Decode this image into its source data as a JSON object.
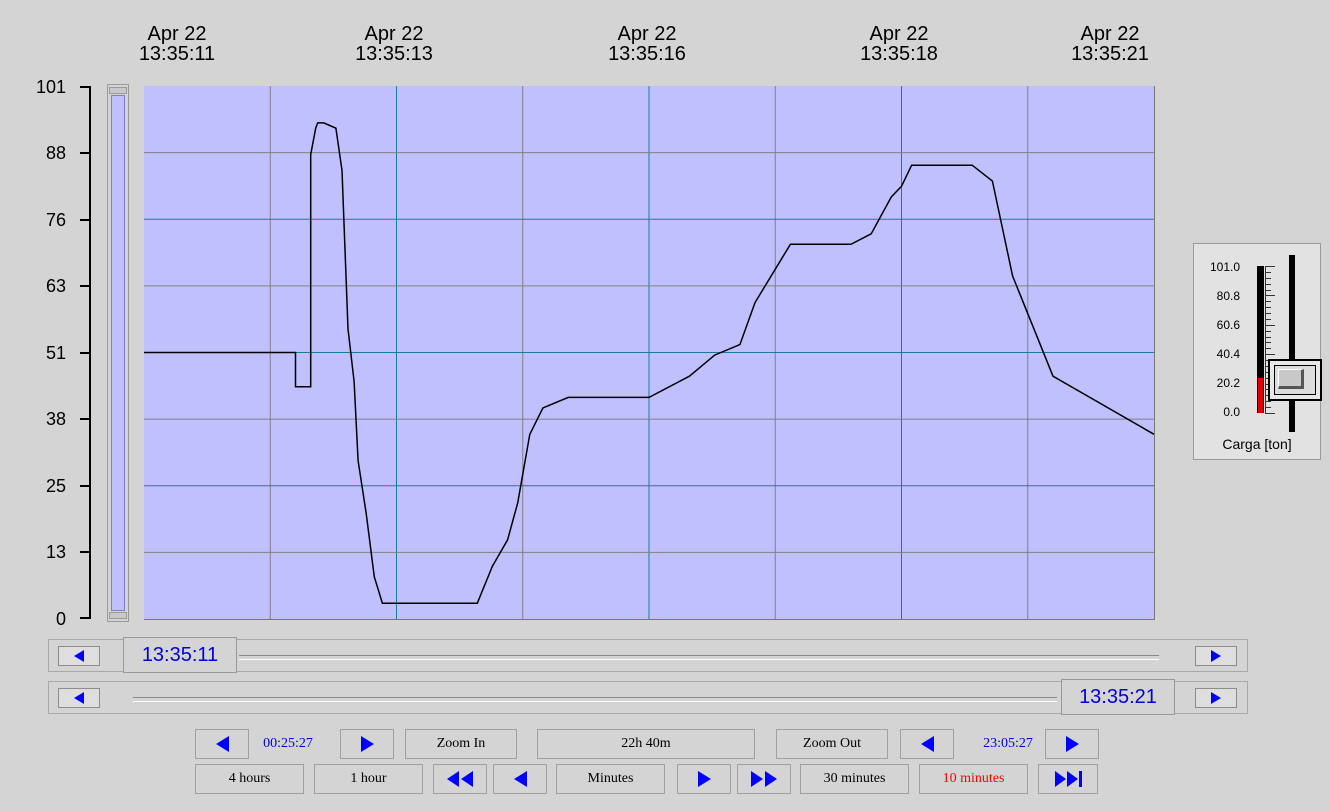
{
  "time_axis": {
    "labels": [
      {
        "date": "Apr 22",
        "time": "13:35:11"
      },
      {
        "date": "Apr 22",
        "time": "13:35:13"
      },
      {
        "date": "Apr 22",
        "time": "13:35:16"
      },
      {
        "date": "Apr 22",
        "time": "13:35:18"
      },
      {
        "date": "Apr 22",
        "time": "13:35:21"
      }
    ]
  },
  "y_axis": {
    "labels": [
      "101",
      "88",
      "76",
      "63",
      "51",
      "38",
      "25",
      "13",
      "0"
    ]
  },
  "chart_data": {
    "type": "line",
    "title": "",
    "xlabel": "",
    "ylabel": "",
    "ylim": [
      0,
      101
    ],
    "xlim": [
      "13:35:11",
      "13:35:21"
    ],
    "grid": true,
    "colors": {
      "background": "#c0c0ff",
      "line": "#000000",
      "major_grid": "#1a7a9a",
      "minor_grid": "#808080"
    },
    "series": [
      {
        "x": [
          "13:35:11.0",
          "13:35:12.5",
          "13:35:12.5",
          "13:35:12.65",
          "13:35:12.65",
          "13:35:12.7",
          "13:35:12.72",
          "13:35:12.78",
          "13:35:12.9",
          "13:35:12.96",
          "13:35:13.0",
          "13:35:13.02",
          "13:35:13.08",
          "13:35:13.12",
          "13:35:13.2",
          "13:35:13.28",
          "13:35:13.36",
          "13:35:13.42",
          "13:35:13.48",
          "13:35:14.05",
          "13:35:14.3",
          "13:35:14.45",
          "13:35:14.6",
          "13:35:14.7",
          "13:35:14.82",
          "13:35:14.95",
          "13:35:15.2",
          "13:35:15.52",
          "13:35:15.6",
          "13:35:15.75",
          "13:35:16.0",
          "13:35:16.4",
          "13:35:16.65",
          "13:35:16.9",
          "13:35:17.05",
          "13:35:17.4",
          "13:35:17.7",
          "13:35:17.8",
          "13:35:18.0",
          "13:35:18.2",
          "13:35:18.4",
          "13:35:18.5",
          "13:35:18.6",
          "13:35:18.8",
          "13:35:19.2",
          "13:35:19.4",
          "13:35:19.6",
          "13:35:20.0",
          "13:35:21.0"
        ],
        "y": [
          50.5,
          50.5,
          44,
          44,
          88,
          93,
          94,
          94,
          93,
          85,
          65,
          55,
          45,
          30,
          20,
          8,
          3,
          3,
          3,
          3,
          3,
          10,
          15,
          22,
          35,
          40,
          42,
          42,
          42,
          42,
          42,
          46,
          50,
          52,
          60,
          71,
          71,
          71,
          71,
          73,
          80,
          82,
          86,
          86,
          86,
          83,
          65,
          46,
          35
        ]
      }
    ]
  },
  "scroll": {
    "start_time": "13:35:11",
    "end_time": "13:35:21"
  },
  "controls": {
    "row1": {
      "left_time": "00:25:27",
      "zoom_in": "Zoom In",
      "span": "22h 40m",
      "zoom_out": "Zoom Out",
      "right_time": "23:05:27"
    },
    "row2": {
      "four_hours": "4 hours",
      "one_hour": "1 hour",
      "minutes": "Minutes",
      "thirty_minutes": "30 minutes",
      "ten_minutes": "10 minutes"
    }
  },
  "gauge": {
    "labels": [
      "101.0",
      "80.8",
      "60.6",
      "40.4",
      "20.2",
      "0.0"
    ],
    "value_fraction": 0.24,
    "fill_color": "#e00000",
    "caption": "Carga [ton]"
  }
}
